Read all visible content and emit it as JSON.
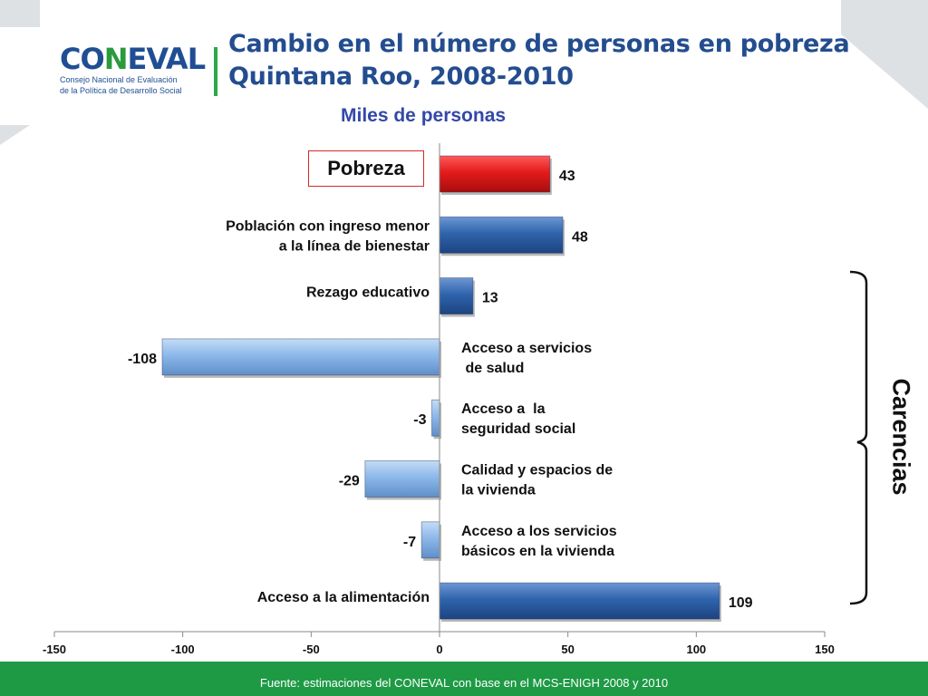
{
  "header": {
    "logo_text_a": "CO",
    "logo_text_n": "N",
    "logo_text_b": "EVAL",
    "logo_subtitle_line1": "Consejo Nacional de Evaluación",
    "logo_subtitle_line2": "de la Política de Desarrollo Social",
    "title_line1": "Cambio en el número de personas en pobreza",
    "title_line2": "Quintana Roo, 2008-2010",
    "subtitle": "Miles de personas"
  },
  "highlight_label": "Pobreza",
  "bracket_label": "Carencias",
  "footer": {
    "source": "Fuente: estimaciones del CONEVAL con base en el MCS-ENIGH 2008 y 2010"
  },
  "colors": {
    "pobreza": "#e31b1b",
    "positive": "#2f64ad",
    "negative": "#8db8ea",
    "footer": "#1e9a45",
    "title": "#234d8f"
  },
  "chart_data": {
    "type": "bar",
    "orientation": "horizontal",
    "unit": "Miles de personas",
    "categories": [
      "Pobreza",
      "Población con ingreso menor a la línea de bienestar",
      "Rezago educativo",
      "Acceso a servicios de salud",
      "Acceso a la seguridad social",
      "Calidad y espacios de la vivienda",
      "Acceso a los servicios básicos en la vivienda",
      "Acceso a la alimentación"
    ],
    "category_lines": [
      [],
      [
        "Población con ingreso menor",
        "a la línea de bienestar"
      ],
      [
        "Rezago educativo"
      ],
      [
        "Acceso a servicios",
        " de salud"
      ],
      [
        "Acceso a  la",
        "seguridad social"
      ],
      [
        "Calidad y espacios de",
        "la vivienda"
      ],
      [
        "Acceso a los servicios",
        "básicos en la vivienda"
      ],
      [
        "Acceso a la alimentación"
      ]
    ],
    "values": [
      43,
      48,
      13,
      -108,
      -3,
      -29,
      -7,
      109
    ],
    "value_labels": [
      "43",
      "48",
      "13",
      "-108",
      "-3",
      "-29",
      "-7",
      "109"
    ],
    "xlim": [
      -150,
      150
    ],
    "xticks": [
      -150,
      -100,
      -50,
      0,
      50,
      100,
      150
    ],
    "xtick_labels": [
      "-150",
      "-100",
      "-50",
      "0",
      "50",
      "100",
      "150"
    ],
    "grid": false,
    "legend": "none"
  }
}
